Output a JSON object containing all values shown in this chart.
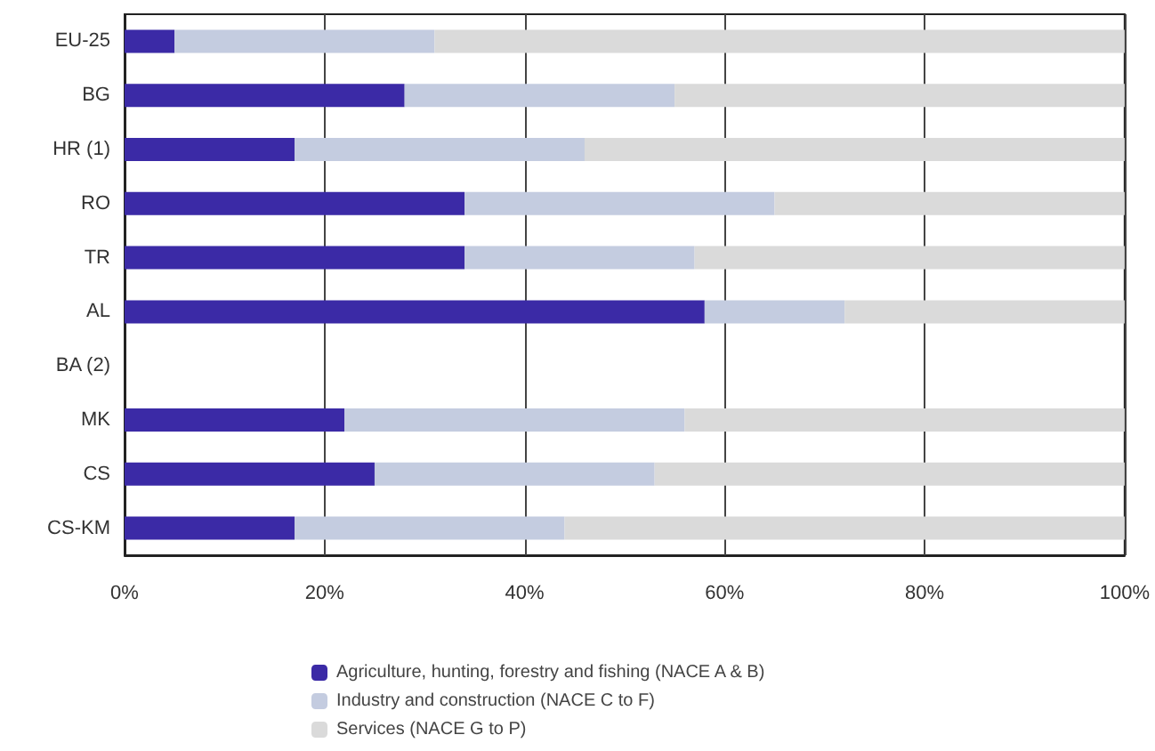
{
  "chart_data": {
    "type": "bar",
    "orientation": "horizontal",
    "stacked": true,
    "categories": [
      "EU-25",
      "BG",
      "HR (1)",
      "RO",
      "TR",
      "AL",
      "BA (2)",
      "MK",
      "CS",
      "CS-KM"
    ],
    "series": [
      {
        "name": "Agriculture, hunting, forestry and fishing (NACE A & B)",
        "color": "#3b2aa6",
        "values": [
          5,
          28,
          17,
          34,
          34,
          58,
          null,
          22,
          25,
          17
        ]
      },
      {
        "name": "Industry and construction (NACE C to F)",
        "color": "#c4cce0",
        "values": [
          26,
          27,
          29,
          31,
          23,
          14,
          null,
          34,
          28,
          27
        ]
      },
      {
        "name": "Services (NACE G to P)",
        "color": "#dadada",
        "values": [
          69,
          45,
          54,
          35,
          43,
          28,
          null,
          44,
          47,
          56
        ]
      }
    ],
    "xlim": [
      0,
      100
    ],
    "xticks": [
      {
        "value": 0,
        "label": "0%"
      },
      {
        "value": 20,
        "label": "20%"
      },
      {
        "value": 40,
        "label": "40%"
      },
      {
        "value": 60,
        "label": "60%"
      },
      {
        "value": 80,
        "label": "80%"
      },
      {
        "value": 100,
        "label": "100%"
      }
    ],
    "grid": "x",
    "legend": "bottom"
  }
}
